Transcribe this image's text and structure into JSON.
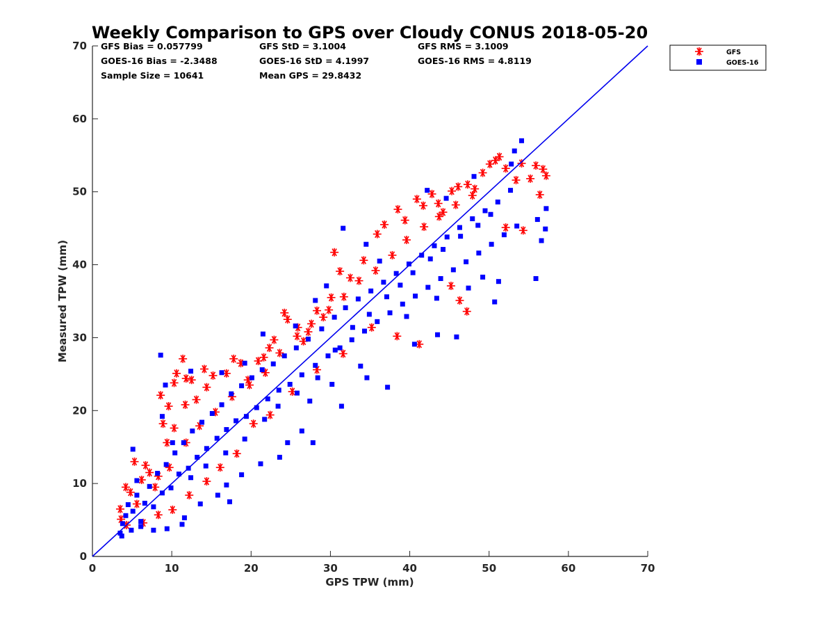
{
  "chart_data": {
    "type": "scatter",
    "title": "Weekly Comparison to GPS over Cloudy CONUS 2018-05-20",
    "xlabel": "GPS TPW (mm)",
    "ylabel": "Measured TPW (mm)",
    "xlim": [
      0,
      70
    ],
    "ylim": [
      0,
      70
    ],
    "x_ticks": [
      "0",
      "10",
      "20",
      "30",
      "40",
      "50",
      "60",
      "70"
    ],
    "y_ticks": [
      "0",
      "10",
      "20",
      "30",
      "40",
      "50",
      "60",
      "70"
    ],
    "grid": false,
    "legend_position": "top-right outside",
    "stats": [
      [
        "GFS Bias = 0.057799",
        "GFS StD = 3.1004",
        "GFS RMS = 3.1009"
      ],
      [
        "GOES-16 Bias = -2.3488",
        "GOES-16 StD = 4.1997",
        "GOES-16 RMS = 4.8119"
      ],
      [
        "Sample Size = 10641",
        "Mean GPS = 29.8432",
        ""
      ]
    ],
    "reference_line": {
      "x": [
        0,
        70
      ],
      "y": [
        0,
        70
      ],
      "color": "#0000ee"
    },
    "series": [
      {
        "name": "GFS",
        "marker": "asterisk",
        "color": "#ff0000",
        "points": [
          [
            3.5,
            6.5
          ],
          [
            4.2,
            9.5
          ],
          [
            4.8,
            8.8
          ],
          [
            5.3,
            13
          ],
          [
            6.7,
            12.5
          ],
          [
            6.2,
            10.5
          ],
          [
            7.2,
            11.5
          ],
          [
            8.3,
            11
          ],
          [
            8.6,
            22.1
          ],
          [
            8.9,
            18.2
          ],
          [
            9.4,
            15.6
          ],
          [
            9.6,
            20.6
          ],
          [
            10.3,
            23.8
          ],
          [
            10.6,
            25.1
          ],
          [
            11.4,
            27.1
          ],
          [
            11.8,
            24.4
          ],
          [
            12.5,
            24.2
          ],
          [
            11.7,
            20.8
          ],
          [
            10.3,
            17.6
          ],
          [
            13.1,
            21.5
          ],
          [
            14.1,
            25.7
          ],
          [
            14.4,
            23.2
          ],
          [
            15.2,
            24.8
          ],
          [
            16.9,
            25.1
          ],
          [
            17.8,
            27.1
          ],
          [
            18.7,
            26.5
          ],
          [
            19.6,
            24.2
          ],
          [
            20.9,
            26.8
          ],
          [
            21.6,
            27.3
          ],
          [
            22.3,
            28.6
          ],
          [
            22.9,
            29.7
          ],
          [
            24.2,
            33.4
          ],
          [
            24.6,
            32.5
          ],
          [
            25.9,
            31.4
          ],
          [
            26.6,
            29.5
          ],
          [
            27.2,
            30.8
          ],
          [
            28.3,
            33.7
          ],
          [
            29.1,
            32.8
          ],
          [
            30.1,
            35.5
          ],
          [
            30.5,
            41.7
          ],
          [
            31.2,
            39.1
          ],
          [
            32.5,
            38.2
          ],
          [
            34.2,
            40.6
          ],
          [
            35.9,
            44.2
          ],
          [
            36.8,
            45.5
          ],
          [
            38.5,
            47.6
          ],
          [
            39.4,
            46.1
          ],
          [
            40.9,
            49
          ],
          [
            41.7,
            48.1
          ],
          [
            42.8,
            49.7
          ],
          [
            43.6,
            48.4
          ],
          [
            44.2,
            47.2
          ],
          [
            45.3,
            50.1
          ],
          [
            46.1,
            50.7
          ],
          [
            47.3,
            51
          ],
          [
            48.2,
            50.4
          ],
          [
            49.2,
            52.6
          ],
          [
            50.1,
            53.8
          ],
          [
            50.8,
            54.3
          ],
          [
            51.3,
            54.8
          ],
          [
            52.1,
            53.2
          ],
          [
            53.4,
            51.6
          ],
          [
            54.1,
            53.9
          ],
          [
            55.2,
            51.8
          ],
          [
            55.9,
            53.6
          ],
          [
            56.8,
            53.1
          ],
          [
            57.2,
            52.2
          ],
          [
            56.4,
            49.6
          ],
          [
            54.3,
            44.7
          ],
          [
            52.1,
            45.1
          ],
          [
            47.2,
            33.6
          ],
          [
            46.3,
            35.1
          ],
          [
            45.2,
            37.1
          ],
          [
            41.2,
            29.1
          ],
          [
            38.4,
            30.2
          ],
          [
            35.2,
            31.4
          ],
          [
            31.6,
            27.8
          ],
          [
            28.3,
            25.6
          ],
          [
            25.2,
            22.6
          ],
          [
            22.4,
            19.4
          ],
          [
            20.3,
            18.2
          ],
          [
            18.2,
            14.1
          ],
          [
            16.1,
            12.2
          ],
          [
            14.4,
            10.3
          ],
          [
            12.2,
            8.4
          ],
          [
            10.1,
            6.4
          ],
          [
            8.3,
            5.7
          ],
          [
            6.4,
            4.6
          ],
          [
            4.3,
            4.3
          ],
          [
            3.6,
            5.1
          ],
          [
            5.6,
            7.2
          ],
          [
            7.9,
            9.5
          ],
          [
            9.7,
            12.2
          ],
          [
            11.8,
            15.6
          ],
          [
            13.5,
            17.9
          ],
          [
            15.5,
            19.8
          ],
          [
            17.6,
            21.9
          ],
          [
            19.8,
            23.5
          ],
          [
            21.8,
            25.2
          ],
          [
            23.6,
            27.9
          ],
          [
            25.8,
            30.2
          ],
          [
            27.6,
            31.9
          ],
          [
            29.8,
            33.8
          ],
          [
            31.7,
            35.6
          ],
          [
            33.6,
            37.8
          ],
          [
            35.7,
            39.2
          ],
          [
            37.8,
            41.3
          ],
          [
            39.6,
            43.4
          ],
          [
            41.8,
            45.2
          ],
          [
            43.7,
            46.6
          ],
          [
            45.8,
            48.2
          ],
          [
            47.9,
            49.5
          ]
        ]
      },
      {
        "name": "GOES-16",
        "marker": "square",
        "color": "#0000ff",
        "points": [
          [
            3.5,
            3.2
          ],
          [
            3.8,
            4.5
          ],
          [
            4.2,
            5.6
          ],
          [
            4.5,
            7.1
          ],
          [
            5.1,
            6.2
          ],
          [
            5.6,
            8.4
          ],
          [
            6.1,
            4.8
          ],
          [
            6.6,
            7.3
          ],
          [
            7.2,
            9.6
          ],
          [
            7.7,
            6.8
          ],
          [
            8.2,
            11.4
          ],
          [
            8.8,
            8.7
          ],
          [
            9.3,
            12.6
          ],
          [
            9.9,
            9.4
          ],
          [
            10.4,
            14.2
          ],
          [
            10.9,
            11.3
          ],
          [
            11.5,
            15.6
          ],
          [
            12.1,
            12.1
          ],
          [
            12.6,
            17.2
          ],
          [
            13.2,
            13.6
          ],
          [
            13.8,
            18.4
          ],
          [
            14.4,
            14.8
          ],
          [
            15.1,
            19.6
          ],
          [
            15.7,
            16.2
          ],
          [
            16.3,
            20.8
          ],
          [
            16.9,
            17.4
          ],
          [
            17.5,
            22.3
          ],
          [
            18.1,
            18.6
          ],
          [
            18.8,
            23.4
          ],
          [
            19.4,
            19.2
          ],
          [
            20.1,
            24.5
          ],
          [
            20.7,
            20.4
          ],
          [
            21.4,
            25.6
          ],
          [
            22.1,
            21.6
          ],
          [
            22.8,
            26.4
          ],
          [
            23.5,
            22.8
          ],
          [
            24.2,
            27.5
          ],
          [
            24.9,
            23.6
          ],
          [
            25.7,
            28.6
          ],
          [
            26.4,
            24.9
          ],
          [
            27.2,
            29.8
          ],
          [
            28.1,
            26.2
          ],
          [
            28.9,
            31.2
          ],
          [
            29.7,
            27.5
          ],
          [
            30.5,
            32.8
          ],
          [
            31.2,
            28.6
          ],
          [
            31.9,
            34.1
          ],
          [
            32.7,
            29.7
          ],
          [
            33.5,
            35.3
          ],
          [
            34.3,
            30.9
          ],
          [
            35.1,
            36.4
          ],
          [
            35.9,
            32.2
          ],
          [
            36.7,
            37.6
          ],
          [
            37.5,
            33.4
          ],
          [
            38.3,
            38.8
          ],
          [
            39.1,
            34.6
          ],
          [
            39.9,
            40.1
          ],
          [
            40.7,
            35.7
          ],
          [
            41.5,
            41.3
          ],
          [
            42.3,
            36.9
          ],
          [
            43.1,
            42.6
          ],
          [
            43.9,
            38.1
          ],
          [
            44.7,
            43.8
          ],
          [
            45.5,
            39.3
          ],
          [
            46.3,
            45.1
          ],
          [
            47.1,
            40.4
          ],
          [
            47.9,
            46.3
          ],
          [
            48.7,
            41.6
          ],
          [
            49.5,
            47.4
          ],
          [
            50.3,
            42.8
          ],
          [
            51.1,
            48.6
          ],
          [
            51.9,
            44.1
          ],
          [
            52.7,
            50.2
          ],
          [
            53.5,
            45.3
          ],
          [
            54.1,
            57
          ],
          [
            53.2,
            55.6
          ],
          [
            52.8,
            53.8
          ],
          [
            48.1,
            52.1
          ],
          [
            44.6,
            49.1
          ],
          [
            42.2,
            50.2
          ],
          [
            31.6,
            45
          ],
          [
            34.5,
            42.8
          ],
          [
            36.2,
            40.5
          ],
          [
            29.5,
            37.1
          ],
          [
            28.1,
            35.1
          ],
          [
            25.6,
            31.6
          ],
          [
            21.5,
            30.5
          ],
          [
            19.2,
            26.5
          ],
          [
            16.3,
            25.2
          ],
          [
            12.4,
            25.4
          ],
          [
            8.6,
            27.6
          ],
          [
            9.2,
            23.5
          ],
          [
            8.8,
            19.2
          ],
          [
            10.1,
            15.6
          ],
          [
            5.1,
            14.7
          ],
          [
            5.6,
            10.4
          ],
          [
            43.5,
            30.4
          ],
          [
            40.6,
            29.1
          ],
          [
            45.9,
            30.1
          ],
          [
            50.7,
            34.9
          ],
          [
            51.2,
            37.7
          ],
          [
            55.9,
            38.1
          ],
          [
            56.6,
            43.3
          ],
          [
            57.1,
            44.9
          ],
          [
            57.2,
            47.7
          ],
          [
            56.1,
            46.2
          ],
          [
            49.2,
            38.3
          ],
          [
            47.4,
            36.8
          ],
          [
            43.4,
            35.4
          ],
          [
            39.6,
            32.9
          ],
          [
            34.6,
            24.5
          ],
          [
            37.2,
            23.2
          ],
          [
            33.8,
            26.1
          ],
          [
            30.2,
            23.6
          ],
          [
            27.4,
            21.3
          ],
          [
            31.4,
            20.6
          ],
          [
            26.4,
            17.2
          ],
          [
            27.8,
            15.6
          ],
          [
            24.6,
            15.6
          ],
          [
            23.6,
            13.6
          ],
          [
            21.2,
            12.7
          ],
          [
            18.8,
            11.2
          ],
          [
            16.9,
            9.8
          ],
          [
            17.3,
            7.5
          ],
          [
            15.8,
            8.4
          ],
          [
            13.6,
            7.2
          ],
          [
            11.6,
            5.3
          ],
          [
            11.3,
            4.4
          ],
          [
            9.4,
            3.8
          ],
          [
            7.7,
            3.6
          ],
          [
            6.1,
            4.1
          ],
          [
            4.9,
            3.6
          ],
          [
            3.7,
            2.8
          ],
          [
            12.4,
            10.8
          ],
          [
            14.3,
            12.4
          ],
          [
            16.8,
            14.2
          ],
          [
            19.2,
            16.1
          ],
          [
            21.7,
            18.8
          ],
          [
            23.4,
            20.6
          ],
          [
            25.8,
            22.4
          ],
          [
            28.4,
            24.5
          ],
          [
            30.6,
            28.3
          ],
          [
            32.8,
            31.4
          ],
          [
            34.9,
            33.2
          ],
          [
            37.1,
            35.6
          ],
          [
            38.8,
            37.2
          ],
          [
            40.4,
            38.9
          ],
          [
            42.6,
            40.8
          ],
          [
            44.2,
            42.1
          ],
          [
            46.4,
            43.9
          ],
          [
            48.6,
            45.4
          ],
          [
            50.2,
            46.9
          ]
        ]
      }
    ]
  },
  "legend": {
    "items": [
      {
        "label": "GFS",
        "marker": "asterisk",
        "color": "#ff0000"
      },
      {
        "label": "GOES-16",
        "marker": "square",
        "color": "#0000ff"
      }
    ]
  }
}
